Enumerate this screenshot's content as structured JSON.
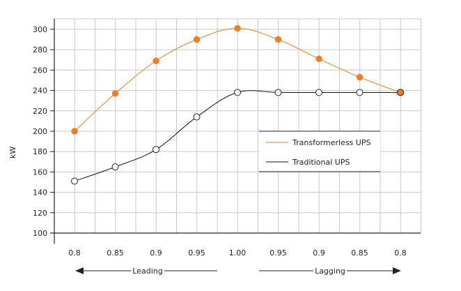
{
  "chart_data": {
    "type": "line",
    "categories": [
      "0.8",
      "0.85",
      "0.9",
      "0.95",
      "1.00",
      "0.95",
      "0.9",
      "0.85",
      "0.8"
    ],
    "series": [
      {
        "name": "Transformerless UPS",
        "values": [
          200,
          237,
          269,
          290,
          301,
          290,
          271,
          253,
          238
        ],
        "color": "#F07F23"
      },
      {
        "name": "Traditional UPS",
        "values": [
          151,
          165,
          182,
          214,
          238,
          238,
          238,
          238,
          238
        ],
        "color": "#111111"
      }
    ],
    "ylabel": "kW",
    "ylim": [
      100,
      300
    ],
    "yticks": [
      100,
      120,
      140,
      160,
      180,
      200,
      220,
      240,
      260,
      280,
      300
    ],
    "grid": true,
    "legend_position": "center-right",
    "direction_labels": {
      "left": "Leading",
      "right": "Lagging"
    }
  }
}
